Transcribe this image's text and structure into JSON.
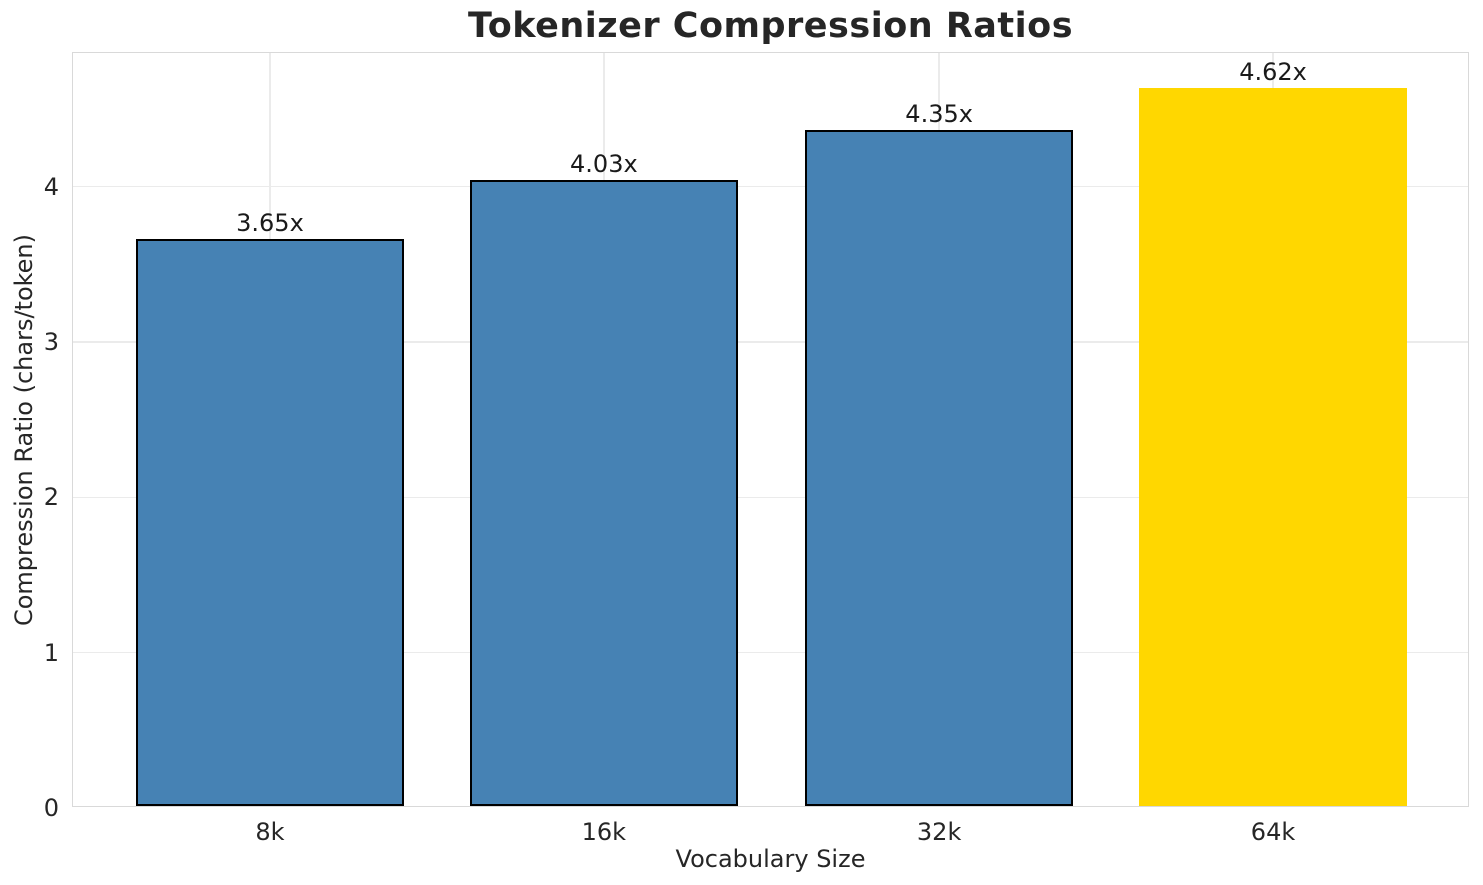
{
  "chart_data": {
    "type": "bar",
    "title": "Tokenizer Compression Ratios",
    "xlabel": "Vocabulary Size",
    "ylabel": "Compression Ratio (chars/token)",
    "categories": [
      "8k",
      "16k",
      "32k",
      "64k"
    ],
    "values": [
      3.65,
      4.03,
      4.35,
      4.62
    ],
    "value_labels": [
      "3.65x",
      "4.03x",
      "4.35x",
      "4.62x"
    ],
    "bar_colors": [
      "#4682B4",
      "#4682B4",
      "#4682B4",
      "#FFD700"
    ],
    "bar_edge_colors": [
      "#000000",
      "#000000",
      "#000000",
      "none"
    ],
    "yticks": [
      "0",
      "1",
      "2",
      "3",
      "4"
    ],
    "ytick_values": [
      0,
      1,
      2,
      3,
      4
    ],
    "ylim": [
      0,
      4.86
    ],
    "grid": "both",
    "legend": null,
    "highlighted_category": "64k",
    "colors": {
      "grid": "#ebebeb",
      "spine": "#d9d9d9",
      "text": "#262626",
      "background": "#ffffff",
      "bar_default": "#4682B4",
      "bar_highlight": "#FFD700"
    }
  }
}
